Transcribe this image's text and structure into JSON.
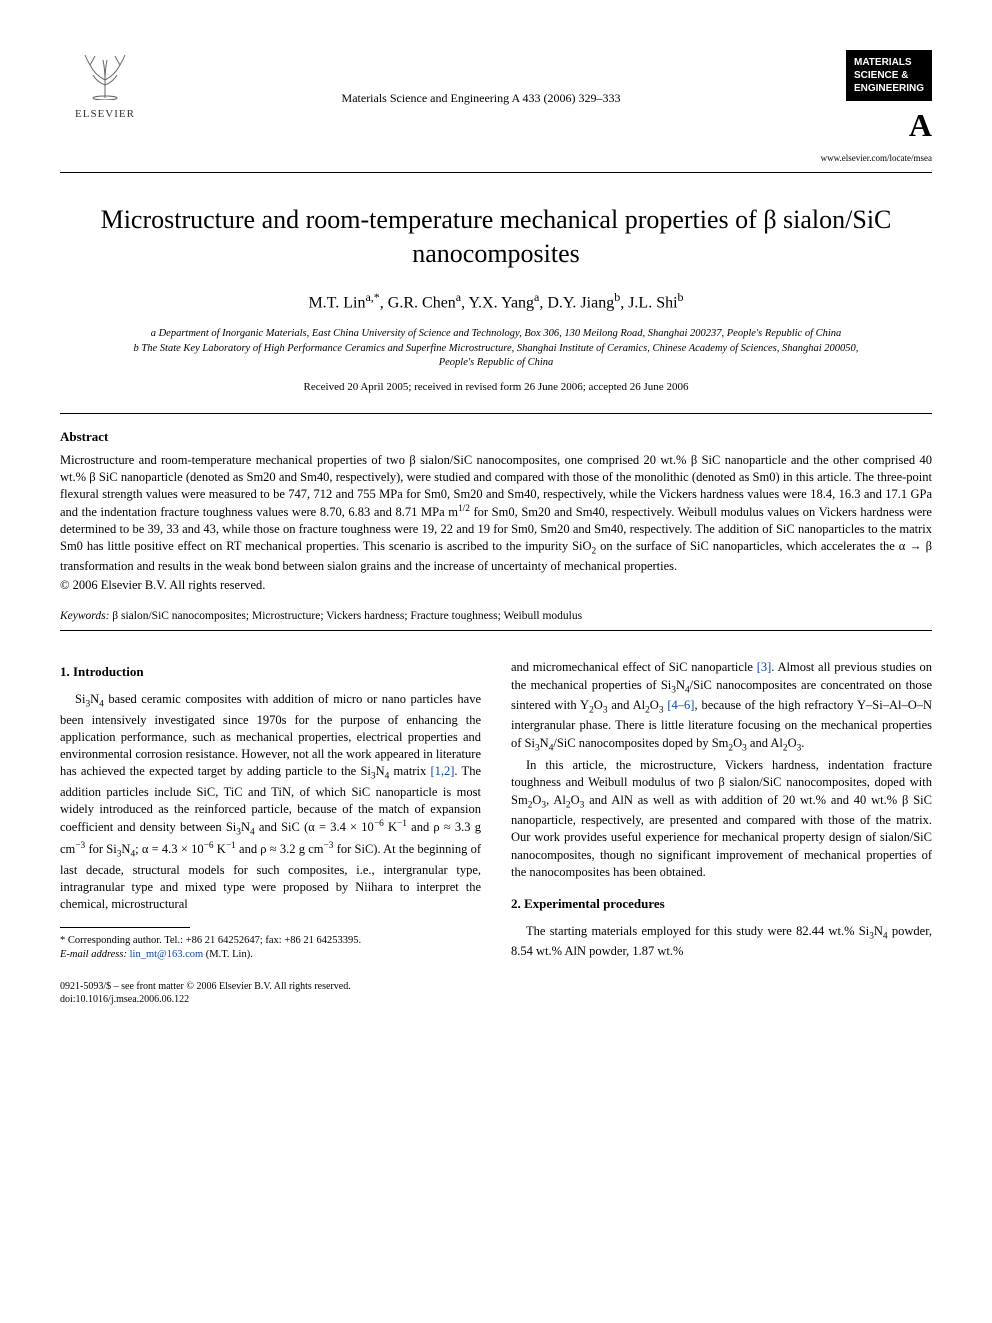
{
  "header": {
    "publisher": "ELSEVIER",
    "journal_ref": "Materials Science and Engineering A 433 (2006) 329–333",
    "badge_line1": "MATERIALS",
    "badge_line2": "SCIENCE &",
    "badge_line3": "ENGINEERING",
    "badge_letter": "A",
    "url": "www.elsevier.com/locate/msea"
  },
  "title": "Microstructure and room-temperature mechanical properties of β sialon/SiC nanocomposites",
  "authors_html": "M.T. Lin<sup>a,*</sup>, G.R. Chen<sup>a</sup>, Y.X. Yang<sup>a</sup>, D.Y. Jiang<sup>b</sup>, J.L. Shi<sup>b</sup>",
  "affiliations": {
    "a": "a Department of Inorganic Materials, East China University of Science and Technology, Box 306, 130 Meilong Road, Shanghai 200237, People's Republic of China",
    "b": "b The State Key Laboratory of High Performance Ceramics and Superfine Microstructure, Shanghai Institute of Ceramics, Chinese Academy of Sciences, Shanghai 200050, People's Republic of China"
  },
  "dates": "Received 20 April 2005; received in revised form 26 June 2006; accepted 26 June 2006",
  "abstract": {
    "heading": "Abstract",
    "body": "Microstructure and room-temperature mechanical properties of two β sialon/SiC nanocomposites, one comprised 20 wt.% β SiC nanoparticle and the other comprised 40 wt.% β SiC nanoparticle (denoted as Sm20 and Sm40, respectively), were studied and compared with those of the monolithic (denoted as Sm0) in this article. The three-point flexural strength values were measured to be 747, 712 and 755 MPa for Sm0, Sm20 and Sm40, respectively, while the Vickers hardness values were 18.4, 16.3 and 17.1 GPa and the indentation fracture toughness values were 8.70, 6.83 and 8.71 MPa m1/2 for Sm0, Sm20 and Sm40, respectively. Weibull modulus values on Vickers hardness were determined to be 39, 33 and 43, while those on fracture toughness were 19, 22 and 19 for Sm0, Sm20 and Sm40, respectively. The addition of SiC nanoparticles to the matrix Sm0 has little positive effect on RT mechanical properties. This scenario is ascribed to the impurity SiO2 on the surface of SiC nanoparticles, which accelerates the α → β transformation and results in the weak bond between sialon grains and the increase of uncertainty of mechanical properties.",
    "copyright": "© 2006 Elsevier B.V. All rights reserved."
  },
  "keywords": {
    "label": "Keywords:",
    "text": "β sialon/SiC nanocomposites; Microstructure; Vickers hardness; Fracture toughness; Weibull modulus"
  },
  "sections": {
    "intro_head": "1.  Introduction",
    "intro_p1_a": "Si3N4 based ceramic composites with addition of micro or nano particles have been intensively investigated since 1970s for the purpose of enhancing the application performance, such as mechanical properties, electrical properties and environmental corrosion resistance. However, not all the work appeared in literature has achieved the expected target by adding particle to the Si3N4 matrix ",
    "intro_ref12": "[1,2]",
    "intro_p1_b": ". The addition particles include SiC, TiC and TiN, of which SiC nanoparticle is most widely introduced as the reinforced particle, because of the match of expansion coefficient and density between Si3N4 and SiC (α = 3.4 × 10−6 K−1 and ρ ≈ 3.3 g cm−3 for Si3N4; α = 4.3 × 10−6 K−1 and ρ ≈ 3.2 g cm−3 for SiC). At the beginning of last decade, structural models for such composites, i.e., intergranular type, intragranular type and mixed type were proposed by Niihara to interpret the chemical, microstructural",
    "intro_p1_c": "and micromechanical effect of SiC nanoparticle ",
    "intro_ref3": "[3]",
    "intro_p1_d": ". Almost all previous studies on the mechanical properties of Si3N4/SiC nanocomposites are concentrated on those sintered with Y2O3 and Al2O3 ",
    "intro_ref46": "[4–6]",
    "intro_p1_e": ", because of the high refractory Y–Si–Al–O–N intergranular phase. There is little literature focusing on the mechanical properties of Si3N4/SiC nanocomposites doped by Sm2O3 and Al2O3.",
    "intro_p2": "In this article, the microstructure, Vickers hardness, indentation fracture toughness and Weibull modulus of two β sialon/SiC nanocomposites, doped with Sm2O3, Al2O3 and AlN as well as with addition of 20 wt.% and 40 wt.% β SiC nanoparticle, respectively, are presented and compared with those of the matrix. Our work provides useful experience for mechanical property design of sialon/SiC nanocomposites, though no significant improvement of mechanical properties of the nanocomposites has been obtained.",
    "exp_head": "2.  Experimental procedures",
    "exp_p1": "The starting materials employed for this study were 82.44 wt.% Si3N4 powder, 8.54 wt.% AlN powder, 1.87 wt.%"
  },
  "footnote": {
    "corr": "* Corresponding author. Tel.: +86 21 64252647; fax: +86 21 64253395.",
    "email_label": "E-mail address:",
    "email": "lin_mt@163.com",
    "email_who": "(M.T. Lin)."
  },
  "bottom": {
    "line1": "0921-5093/$ – see front matter © 2006 Elsevier B.V. All rights reserved.",
    "doi": "doi:10.1016/j.msea.2006.06.122"
  },
  "style": {
    "link_color": "#0645ad",
    "text_color": "#000000",
    "bg_color": "#ffffff"
  }
}
